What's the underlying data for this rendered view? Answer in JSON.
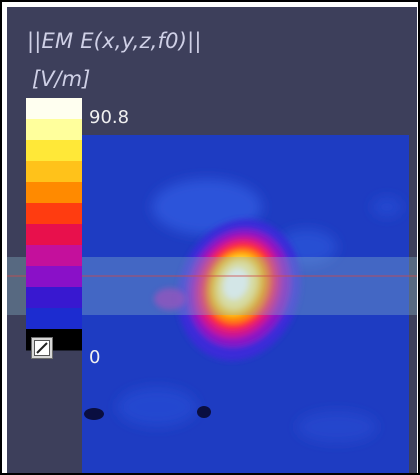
{
  "overlay": {
    "title": "||EM E(x,y,z,f0)||",
    "unit": "[V/m]"
  },
  "colorbar": {
    "max_label": "90.8",
    "min_label": "0",
    "colors": [
      "#fffff0",
      "#ffff9c",
      "#ffe838",
      "#ffc21a",
      "#ff8a00",
      "#ff3c10",
      "#e8104c",
      "#c4109c",
      "#8a10c8",
      "#3818d0",
      "#1c2cd0",
      "#000000"
    ]
  },
  "colors": {
    "viewport_bg": "#3d3f5b",
    "field_base": "#1e3cc2",
    "band": "#5c88a8",
    "text": "#cfd0e6"
  },
  "icons": {
    "edit": "edit-colormap-icon"
  }
}
